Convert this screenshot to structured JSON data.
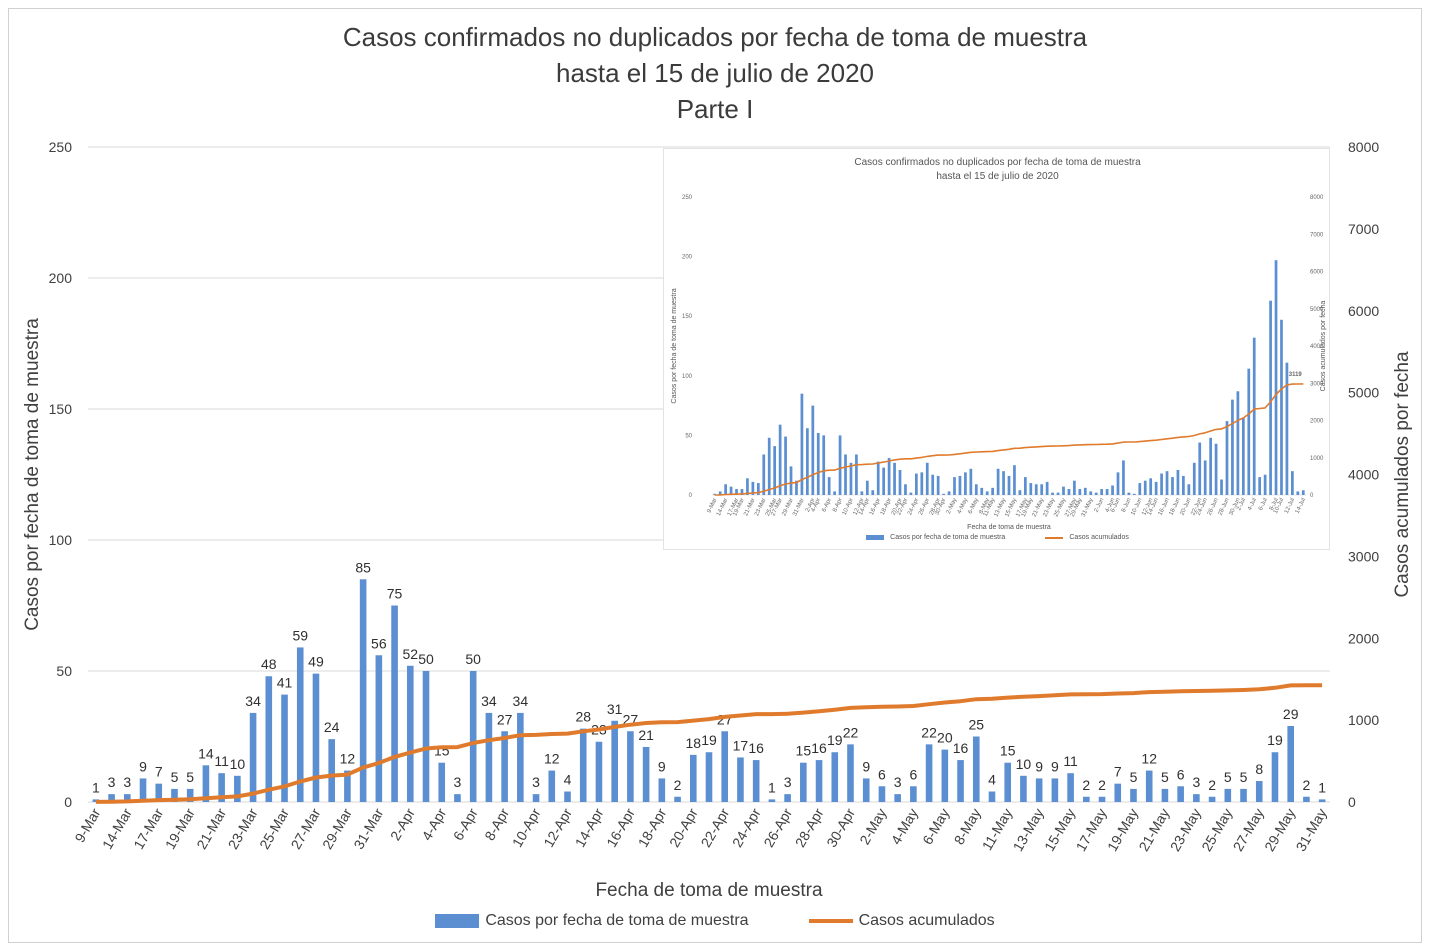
{
  "colors": {
    "bar": "#5b8fd1",
    "line": "#e07b2d",
    "grid": "#d9d9d9"
  },
  "main": {
    "title_line1": "Casos confirmados no duplicados por fecha de toma de muestra",
    "title_line2": "hasta el 15 de julio de 2020",
    "title_line3": "Parte I",
    "legend_bar": "Casos por fecha de toma de muestra",
    "legend_line": "Casos acumulados"
  },
  "inset": {
    "title_line1": "Casos confirmados no duplicados por fecha de toma de muestra",
    "title_line2": "hasta el 15 de julio de 2020",
    "legend_bar": "Casos por fecha de toma de muestra",
    "legend_line": "Casos acumulados",
    "xlabel": "Fecha de toma de muestra",
    "ylabel": "Casos por fecha de toma de muestra",
    "y2label": "Casos acumulados por fecha",
    "final_label": "3119",
    "yticks": [
      "0",
      "50",
      "100",
      "150",
      "200",
      "250"
    ],
    "y2ticks": [
      "0",
      "1000",
      "2000",
      "3000",
      "4000",
      "5000",
      "6000",
      "7000",
      "8000"
    ],
    "xticks": [
      "9-Mar",
      "14-Mar",
      "17-Mar",
      "19-Mar",
      "21-Mar",
      "23-Mar",
      "25-Mar",
      "27-Mar",
      "29-Mar",
      "31-Mar",
      "2-Apr",
      "4-Apr",
      "6-Apr",
      "8-Apr",
      "10-Apr",
      "12-Apr",
      "14-Apr",
      "16-Apr",
      "18-Apr",
      "20-Apr",
      "22-Apr",
      "24-Apr",
      "26-Apr",
      "28-Apr",
      "30-Apr",
      "2-May",
      "4-May",
      "6-May",
      "8-May",
      "11-May",
      "13-May",
      "15-May",
      "17-May",
      "19-May",
      "21-May",
      "23-May",
      "25-May",
      "27-May",
      "29-May",
      "31-May",
      "2-Jun",
      "4-Jun",
      "6-Jun",
      "8-Jun",
      "10-Jun",
      "12-Jun",
      "14-Jun",
      "16-Jun",
      "18-Jun",
      "20-Jun",
      "22-Jun",
      "24-Jun",
      "26-Jun",
      "28-Jun",
      "30-Jun",
      "2-Jul",
      "4-Jul",
      "6-Jul",
      "8-Jul",
      "10-Jul",
      "12-Jul",
      "14-Jul"
    ],
    "values": [
      1,
      3,
      9,
      7,
      5,
      5,
      14,
      11,
      10,
      34,
      48,
      41,
      59,
      49,
      24,
      12,
      85,
      56,
      75,
      52,
      50,
      15,
      3,
      50,
      34,
      27,
      34,
      3,
      12,
      4,
      28,
      23,
      31,
      27,
      21,
      9,
      2,
      18,
      19,
      27,
      17,
      16,
      1,
      3,
      15,
      16,
      19,
      22,
      9,
      6,
      3,
      6,
      22,
      20,
      16,
      25,
      4,
      15,
      10,
      9,
      9,
      11,
      2,
      2,
      7,
      5,
      12,
      5,
      6,
      3,
      2,
      5,
      5,
      8,
      19,
      29,
      2,
      1,
      10,
      12,
      14,
      11,
      18,
      20,
      15,
      21,
      16,
      9,
      27,
      44,
      29,
      48,
      43,
      13,
      62,
      80,
      87,
      65,
      106,
      132,
      15,
      17,
      163,
      197,
      147,
      111,
      20,
      3,
      4
    ]
  },
  "chart_data": {
    "type": "bar",
    "title": "Casos confirmados no duplicados por fecha de toma de muestra\nhasta el 15 de julio de 2020\nParte I",
    "xlabel": "Fecha de toma de muestra",
    "ylabel": "Casos por fecha de toma de muestra",
    "y2label": "Casos acumulados por fecha",
    "ylim": [
      0,
      250
    ],
    "y2lim": [
      0,
      8000
    ],
    "yticks": [
      "0",
      "50",
      "100",
      "150",
      "200",
      "250"
    ],
    "y2ticks": [
      "0",
      "1000",
      "2000",
      "3000",
      "4000",
      "5000",
      "6000",
      "7000",
      "8000"
    ],
    "xtick_labels": [
      "9-Mar",
      "14-Mar",
      "17-Mar",
      "19-Mar",
      "21-Mar",
      "23-Mar",
      "25-Mar",
      "27-Mar",
      "29-Mar",
      "31-Mar",
      "2-Apr",
      "4-Apr",
      "6-Apr",
      "8-Apr",
      "10-Apr",
      "12-Apr",
      "14-Apr",
      "16-Apr",
      "18-Apr",
      "20-Apr",
      "22-Apr",
      "24-Apr",
      "26-Apr",
      "28-Apr",
      "30-Apr",
      "2-May",
      "4-May",
      "6-May",
      "8-May",
      "11-May",
      "13-May",
      "15-May",
      "17-May",
      "19-May",
      "21-May",
      "23-May",
      "25-May",
      "27-May",
      "29-May",
      "31-May"
    ],
    "grid": true,
    "legend": "bottom",
    "series": [
      {
        "name": "Casos por fecha de toma de muestra",
        "type": "bar",
        "axis": "left",
        "values": [
          1,
          3,
          3,
          9,
          7,
          5,
          5,
          14,
          11,
          10,
          34,
          48,
          41,
          59,
          49,
          24,
          12,
          85,
          56,
          75,
          52,
          50,
          15,
          3,
          50,
          34,
          27,
          34,
          3,
          12,
          4,
          28,
          23,
          31,
          27,
          21,
          9,
          2,
          18,
          19,
          27,
          17,
          16,
          1,
          3,
          15,
          16,
          19,
          22,
          9,
          6,
          3,
          6,
          22,
          20,
          16,
          25,
          4,
          15,
          10,
          9,
          9,
          11,
          2,
          2,
          7,
          5,
          12,
          5,
          6,
          3,
          2,
          5,
          5,
          8,
          19,
          29,
          2,
          1
        ]
      },
      {
        "name": "Casos acumulados",
        "type": "line",
        "axis": "right",
        "values": [
          1,
          4,
          7,
          16,
          23,
          28,
          33,
          47,
          58,
          68,
          102,
          150,
          191,
          250,
          299,
          323,
          335,
          420,
          476,
          551,
          603,
          653,
          668,
          671,
          721,
          755,
          782,
          816,
          819,
          831,
          835,
          863,
          886,
          917,
          944,
          965,
          974,
          976,
          994,
          1013,
          1040,
          1057,
          1073,
          1074,
          1077,
          1092,
          1108,
          1127,
          1149,
          1158,
          1164,
          1167,
          1173,
          1195,
          1215,
          1231,
          1256,
          1260,
          1275,
          1285,
          1294,
          1303,
          1314,
          1316,
          1318,
          1325,
          1330,
          1342,
          1347,
          1353,
          1356,
          1358,
          1363,
          1368,
          1376,
          1395,
          1424,
          1426,
          1427
        ]
      }
    ],
    "data_labels": [
      "1",
      "3",
      "3",
      "9",
      "7",
      "5",
      "5",
      "14",
      "11",
      "10",
      "34",
      "48",
      "41",
      "59",
      "49",
      "24",
      "12",
      "85",
      "56",
      "75",
      "52",
      "50",
      "15",
      "3",
      "50",
      "34",
      "27",
      "34",
      "3",
      "12",
      "4",
      "28",
      "23",
      "31",
      "27",
      "21",
      "9",
      "2",
      "18",
      "19",
      "27",
      "17",
      "16",
      "1",
      "3",
      "15",
      "16",
      "19",
      "22",
      "9",
      "6",
      "3",
      "6",
      "22",
      "20",
      "16",
      "25",
      "4",
      "15",
      "10",
      "9",
      "9",
      "11",
      "2",
      "2",
      "7",
      "5",
      "12",
      "5",
      "6",
      "3",
      "2",
      "5",
      "5",
      "8",
      "19",
      "29",
      "2",
      "1"
    ]
  }
}
